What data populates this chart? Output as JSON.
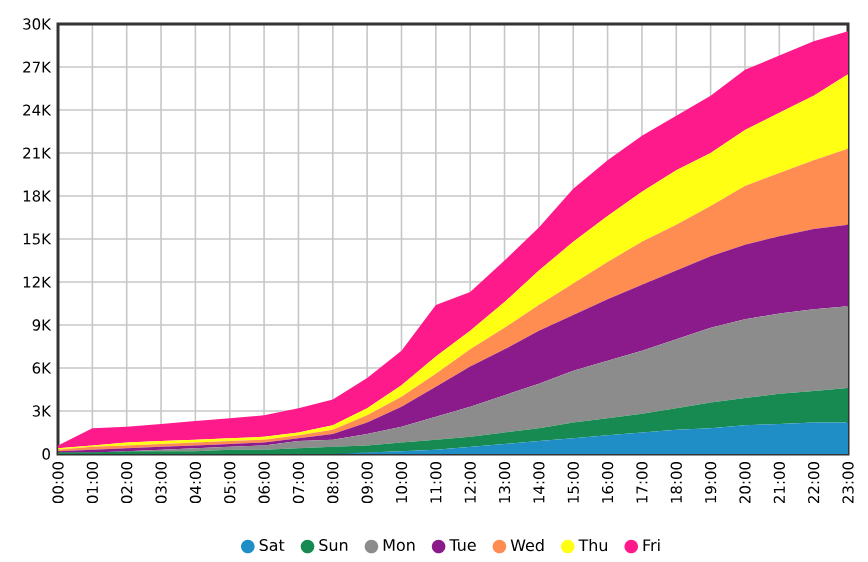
{
  "chart_data": {
    "type": "area",
    "stacked": true,
    "grid": true,
    "legend": "bottom",
    "categories": [
      "00:00",
      "01:00",
      "02:00",
      "03:00",
      "04:00",
      "05:00",
      "06:00",
      "07:00",
      "08:00",
      "09:00",
      "10:00",
      "11:00",
      "12:00",
      "13:00",
      "14:00",
      "15:00",
      "16:00",
      "17:00",
      "18:00",
      "19:00",
      "20:00",
      "21:00",
      "22:00",
      "23:00"
    ],
    "ylim": [
      0,
      30000
    ],
    "yticks": [
      0,
      {
        "value": 3000,
        "label": "3K"
      },
      {
        "value": 6000,
        "label": "6K"
      },
      {
        "value": 9000,
        "label": "9K"
      },
      {
        "value": 12000,
        "label": "12K"
      },
      {
        "value": 15000,
        "label": "15K"
      },
      {
        "value": 18000,
        "label": "18K"
      },
      {
        "value": 21000,
        "label": "21K"
      },
      {
        "value": 24000,
        "label": "24K"
      },
      {
        "value": 27000,
        "label": "27K"
      },
      {
        "value": 30000,
        "label": "30K"
      }
    ],
    "series": [
      {
        "name": "Sat",
        "color": "#1f8dc6",
        "values": [
          0,
          0,
          0,
          0,
          0,
          0,
          0,
          0,
          0,
          100,
          200,
          300,
          500,
          700,
          900,
          1100,
          1300,
          1500,
          1700,
          1800,
          2000,
          2100,
          2200,
          2200
        ]
      },
      {
        "name": "Sun",
        "color": "#168a50",
        "values": [
          100,
          100,
          200,
          200,
          200,
          300,
          300,
          400,
          500,
          500,
          600,
          700,
          700,
          800,
          900,
          1100,
          1200,
          1300,
          1500,
          1800,
          1900,
          2100,
          2200,
          2400
        ]
      },
      {
        "name": "Mon",
        "color": "#8c8c8c",
        "values": [
          0,
          0,
          0,
          100,
          200,
          200,
          300,
          500,
          500,
          800,
          1100,
          1600,
          2100,
          2600,
          3100,
          3600,
          4000,
          4400,
          4800,
          5200,
          5500,
          5600,
          5700,
          5700
        ]
      },
      {
        "name": "Tue",
        "color": "#8b1a8b",
        "values": [
          100,
          200,
          200,
          200,
          200,
          200,
          200,
          200,
          400,
          800,
          1400,
          2100,
          2800,
          3200,
          3700,
          3900,
          4300,
          4600,
          4800,
          5000,
          5200,
          5400,
          5600,
          5700
        ]
      },
      {
        "name": "Wed",
        "color": "#ff8c50",
        "values": [
          100,
          200,
          200,
          200,
          200,
          200,
          200,
          200,
          300,
          500,
          700,
          900,
          1200,
          1500,
          1800,
          2200,
          2600,
          3000,
          3200,
          3500,
          4100,
          4400,
          4800,
          5300
        ]
      },
      {
        "name": "Thu",
        "color": "#ffff14",
        "values": [
          100,
          100,
          200,
          200,
          200,
          200,
          200,
          200,
          300,
          500,
          800,
          1200,
          1300,
          1800,
          2400,
          2900,
          3200,
          3500,
          3800,
          3700,
          3900,
          4200,
          4500,
          5200
        ]
      },
      {
        "name": "Fri",
        "color": "#ff1a8c",
        "values": [
          200,
          1200,
          1100,
          1200,
          1300,
          1400,
          1500,
          1700,
          1800,
          2100,
          2400,
          3600,
          2700,
          2900,
          3000,
          3700,
          3900,
          3900,
          3800,
          4000,
          4200,
          4000,
          3800,
          3000
        ]
      }
    ]
  }
}
